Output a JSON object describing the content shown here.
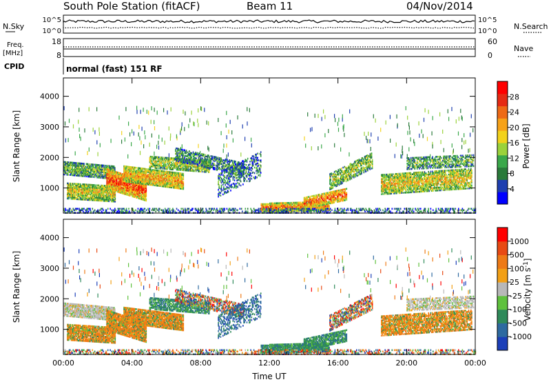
{
  "header": {
    "station": "South Pole Station (fitACF)",
    "beam": "Beam 11",
    "date": "04/Nov/2014"
  },
  "side_labels": {
    "nsky": "N.Sky",
    "freq_line1": "Freq.",
    "freq_line2": "[MHz]",
    "cpid": "CPID",
    "nsearch": "N.Search",
    "nave": "Nave"
  },
  "noise_panel": {
    "ticks_left": [
      "10^5",
      "10^0"
    ],
    "ticks_right": [
      "10^5",
      "10^0"
    ]
  },
  "freq_panel": {
    "ticks_left": [
      "18",
      "8"
    ],
    "ticks_right": [
      "60",
      "0"
    ]
  },
  "cpid_text": "normal (fast) 151 RF",
  "chart_data": [
    {
      "type": "heatmap",
      "parameter": "Power",
      "ylabel": "Slant Range [km]",
      "xlabel": "",
      "x_ticks": [
        "00:00",
        "04:00",
        "08:00",
        "12:00",
        "16:00",
        "20:00",
        "00:00"
      ],
      "y_ticks": [
        1000,
        2000,
        3000,
        4000
      ],
      "ylim": [
        180,
        4600
      ],
      "xlim_hours": [
        0,
        24
      ],
      "colorbar": {
        "label": "Power [dB]",
        "ticks": [
          4,
          8,
          12,
          16,
          20,
          24,
          28
        ],
        "range": [
          0,
          32
        ],
        "colors": [
          "#0000ff",
          "#1e3fb0",
          "#2a7a3a",
          "#3aa84a",
          "#9bd23b",
          "#f2d21b",
          "#f7a218",
          "#ee6a16",
          "#e62b14",
          "#ff0000"
        ]
      }
    },
    {
      "type": "heatmap",
      "parameter": "Velocity",
      "ylabel": "Slant Range [km]",
      "xlabel": "Time UT",
      "x_ticks": [
        "00:00",
        "04:00",
        "08:00",
        "12:00",
        "16:00",
        "20:00",
        "00:00"
      ],
      "y_ticks": [
        1000,
        2000,
        3000,
        4000
      ],
      "ylim": [
        180,
        4600
      ],
      "xlim_hours": [
        0,
        24
      ],
      "colorbar": {
        "label": "Velocity [m s^-1]",
        "ticks": [
          "1000",
          "500",
          "100",
          "25",
          "-25",
          "-100",
          "-500",
          "-1000"
        ],
        "colors": [
          "#1c3fb8",
          "#2e6aa0",
          "#2f8a5a",
          "#5fc13d",
          "#b8b8b8",
          "#f2a016",
          "#ee7a16",
          "#e84a14",
          "#ff0000"
        ]
      }
    }
  ]
}
